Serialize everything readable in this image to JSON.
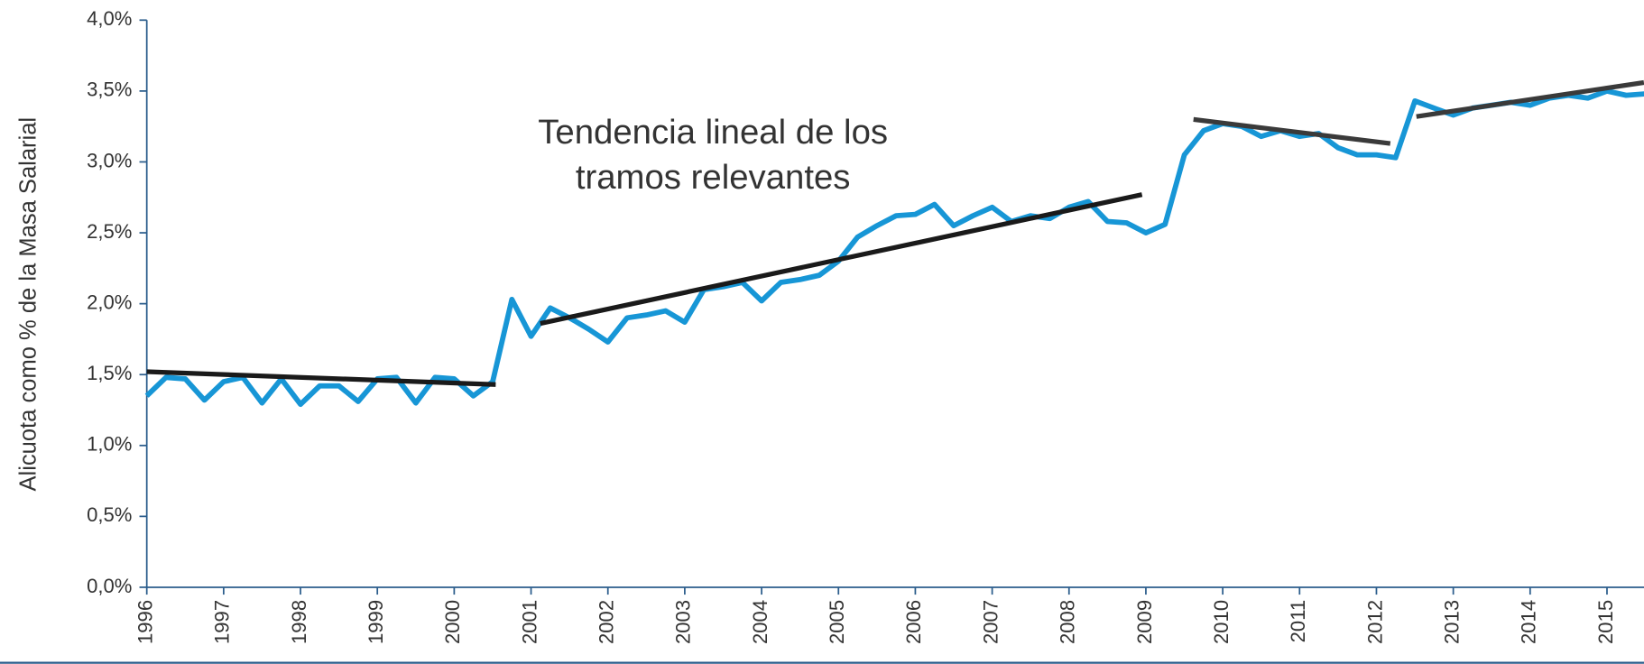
{
  "chart_data": {
    "type": "line",
    "y_label": "Alicuota como % de la Masa Salarial",
    "annotation": [
      "Tendencia lineal de los",
      "tramos relevantes"
    ],
    "x": [
      1996,
      1996.25,
      1996.5,
      1996.75,
      1997,
      1997.25,
      1997.5,
      1997.75,
      1998,
      1998.25,
      1998.5,
      1998.75,
      1999,
      1999.25,
      1999.5,
      1999.75,
      2000,
      2000.25,
      2000.5,
      2000.75,
      2001,
      2001.25,
      2001.5,
      2001.75,
      2002,
      2002.25,
      2002.5,
      2002.75,
      2003,
      2003.25,
      2003.5,
      2003.75,
      2004,
      2004.25,
      2004.5,
      2004.75,
      2005,
      2005.25,
      2005.5,
      2005.75,
      2006,
      2006.25,
      2006.5,
      2006.75,
      2007,
      2007.25,
      2007.5,
      2007.75,
      2008,
      2008.25,
      2008.5,
      2008.75,
      2009,
      2009.25,
      2009.5,
      2009.75,
      2010,
      2010.25,
      2010.5,
      2010.75,
      2011,
      2011.25,
      2011.5,
      2011.75,
      2012,
      2012.25,
      2012.5,
      2012.75,
      2013,
      2013.25,
      2013.5,
      2013.75,
      2014,
      2014.25,
      2014.5,
      2014.75,
      2015,
      2015.25,
      2015.5
    ],
    "series": [
      {
        "name": "Alicuota",
        "color": "#1796d6",
        "values": [
          1.35,
          1.48,
          1.47,
          1.32,
          1.45,
          1.48,
          1.3,
          1.47,
          1.29,
          1.42,
          1.42,
          1.31,
          1.47,
          1.48,
          1.3,
          1.48,
          1.47,
          1.35,
          1.45,
          2.03,
          1.77,
          1.97,
          1.9,
          1.82,
          1.73,
          1.9,
          1.92,
          1.95,
          1.87,
          2.1,
          2.12,
          2.15,
          2.02,
          2.15,
          2.17,
          2.2,
          2.3,
          2.47,
          2.55,
          2.62,
          2.63,
          2.7,
          2.55,
          2.62,
          2.68,
          2.58,
          2.62,
          2.6,
          2.68,
          2.72,
          2.58,
          2.57,
          2.5,
          2.56,
          3.05,
          3.22,
          3.27,
          3.25,
          3.18,
          3.22,
          3.18,
          3.2,
          3.1,
          3.05,
          3.05,
          3.03,
          3.43,
          3.38,
          3.33,
          3.38,
          3.4,
          3.42,
          3.4,
          3.45,
          3.47,
          3.45,
          3.5,
          3.47,
          3.48
        ]
      }
    ],
    "trend_lines": [
      {
        "color": "#1a1a1a",
        "x": [
          1996,
          2000.54
        ],
        "values": [
          1.52,
          1.43
        ]
      },
      {
        "color": "#1a1a1a",
        "x": [
          2001.12,
          2008.95
        ],
        "values": [
          1.86,
          2.77
        ]
      },
      {
        "color": "#3a3a3a",
        "x": [
          2009.62,
          2012.18
        ],
        "values": [
          3.3,
          3.13
        ]
      },
      {
        "color": "#3a3a3a",
        "x": [
          2012.52,
          2015.48
        ],
        "values": [
          3.32,
          3.56
        ]
      }
    ],
    "xlim": [
      1996,
      2016
    ],
    "xticks": [
      1996,
      1997,
      1998,
      1999,
      2000,
      2001,
      2002,
      2003,
      2004,
      2005,
      2006,
      2007,
      2008,
      2009,
      2010,
      2011,
      2012,
      2013,
      2014,
      2015
    ],
    "ylim": [
      0,
      4
    ],
    "yticks": [
      {
        "value": 0,
        "label": "0,0%"
      },
      {
        "value": 0.5,
        "label": "0,5%"
      },
      {
        "value": 1,
        "label": "1,0%"
      },
      {
        "value": 1.5,
        "label": "1,5%"
      },
      {
        "value": 2,
        "label": "2,0%"
      },
      {
        "value": 2.5,
        "label": "2,5%"
      },
      {
        "value": 3,
        "label": "3,0%"
      },
      {
        "value": 3.5,
        "label": "3,5%"
      },
      {
        "value": 4,
        "label": "4,0%"
      }
    ],
    "grid": false
  }
}
